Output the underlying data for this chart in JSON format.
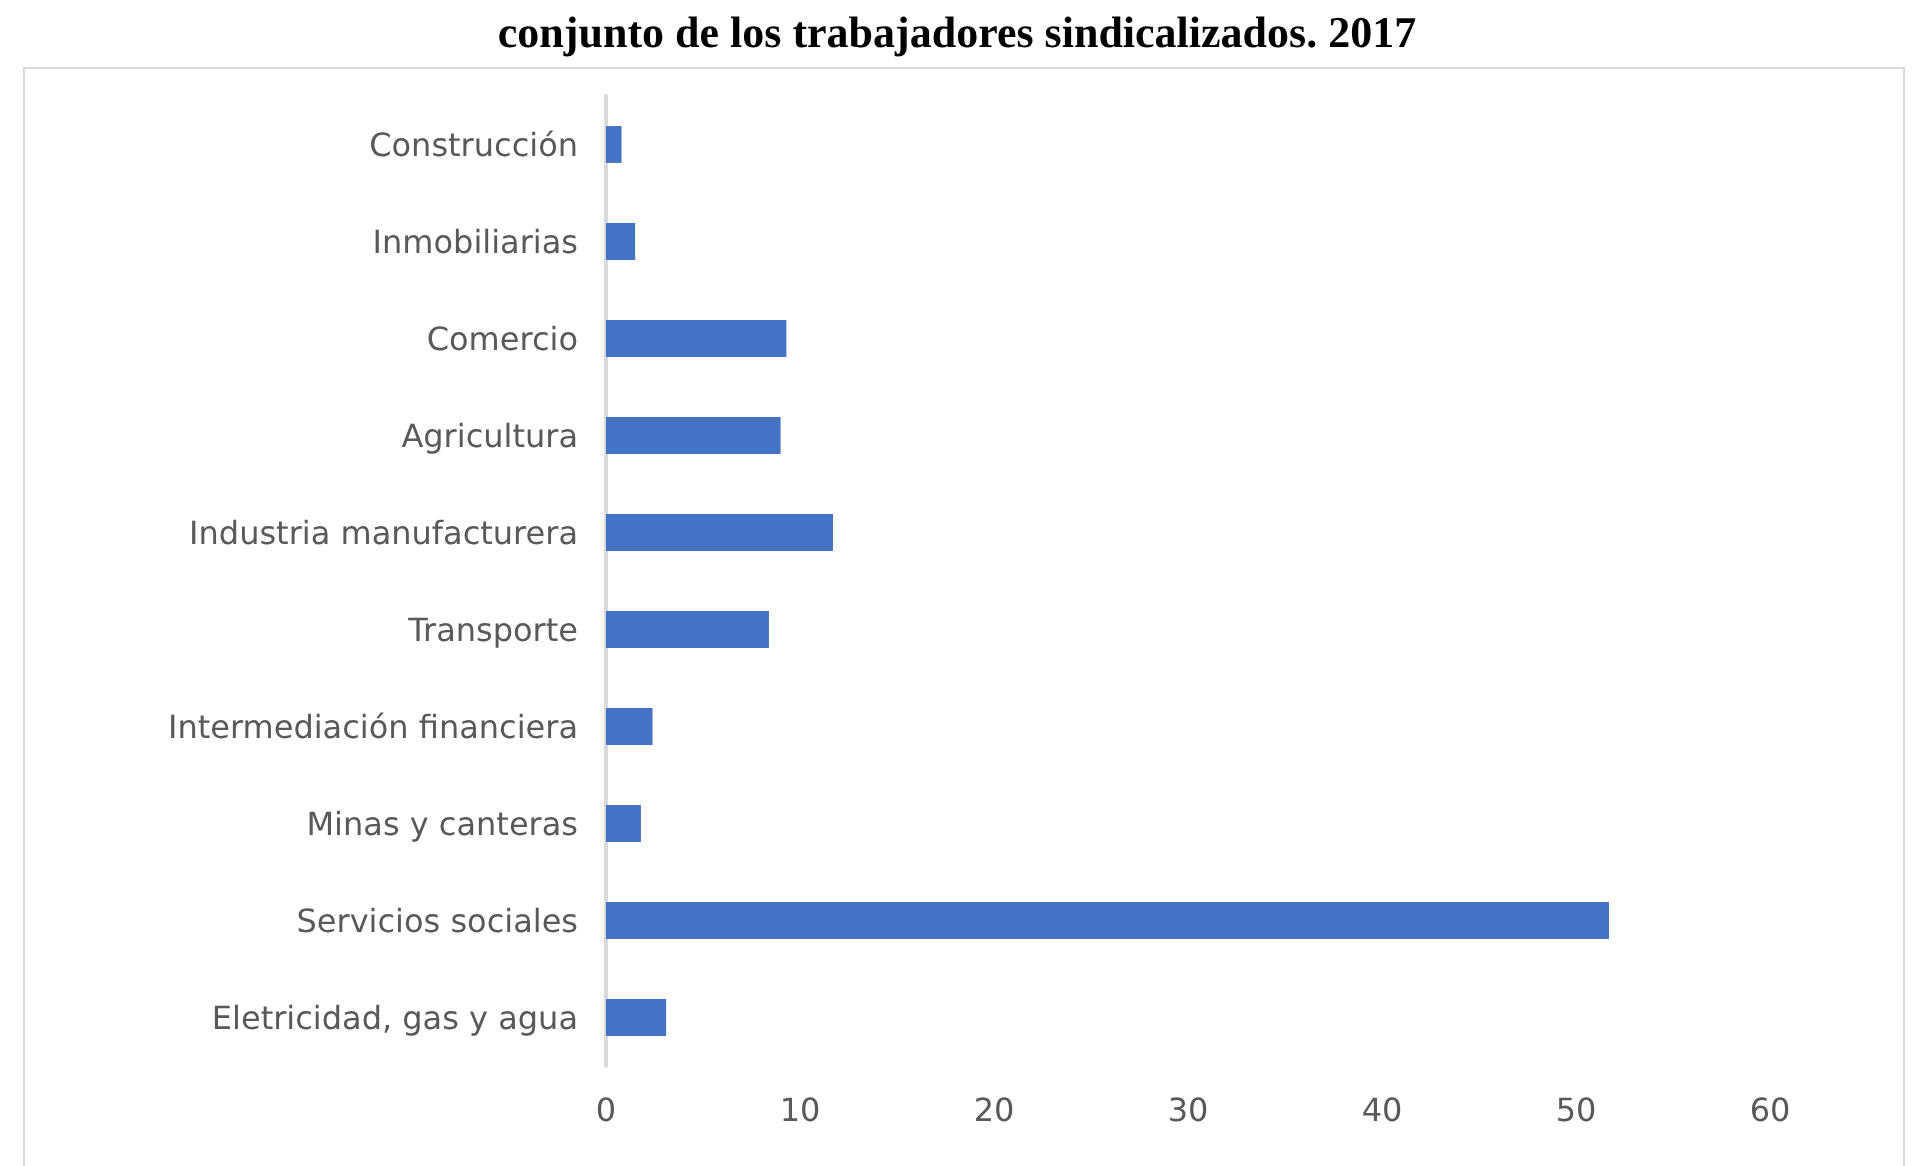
{
  "chart_data": {
    "type": "bar",
    "orientation": "horizontal",
    "title": "conjunto de los trabajadores sindicalizados. 2017",
    "categories": [
      "Construcción",
      "Inmobiliarias",
      "Comercio",
      "Agricultura",
      "Industria manufacturera",
      "Transporte",
      "Intermediación financiera",
      "Minas y canteras",
      "Servicios sociales",
      "Eletricidad, gas y agua"
    ],
    "values": [
      0.8,
      1.5,
      9.3,
      9.0,
      11.7,
      8.4,
      2.4,
      1.8,
      51.7,
      3.1
    ],
    "color": "#4472c4",
    "xlim": [
      0,
      60
    ],
    "xticks": [
      0,
      10,
      20,
      30,
      40,
      50,
      60
    ],
    "grid": false
  }
}
